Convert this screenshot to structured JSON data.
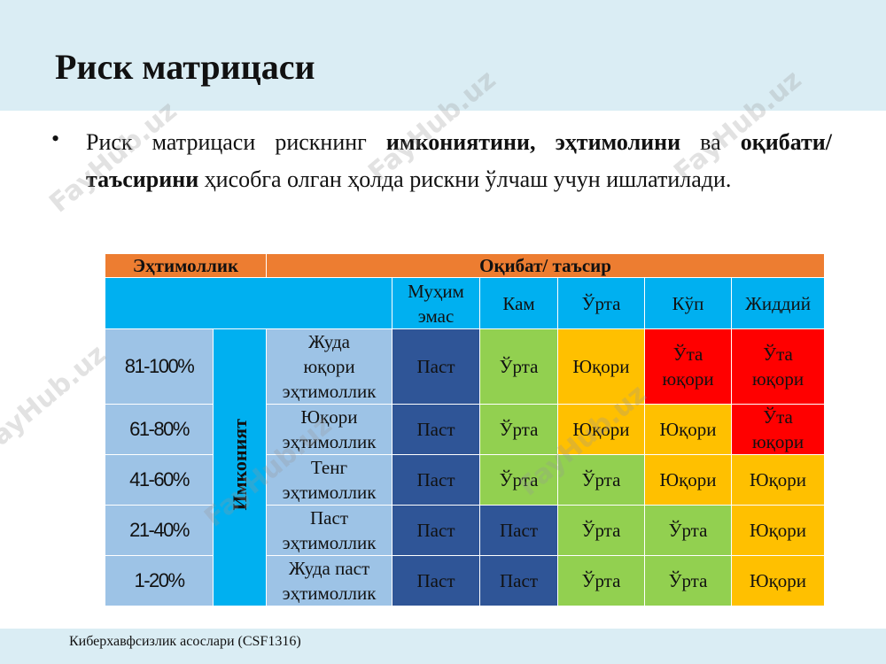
{
  "header": {
    "title": "Риск матрицаси"
  },
  "bullet": [
    {
      "text": "Риск матрицаси рискнинг ",
      "bold": false
    },
    {
      "text": "имкониятини, эҳтимолини",
      "bold": true
    },
    {
      "text": "  ва ",
      "bold": false
    },
    {
      "text": "оқибати/ таъсирини",
      "bold": true
    },
    {
      "text": " ҳисобга олган ҳолда рискни ўлчаш учун ишлатилади.",
      "bold": false
    }
  ],
  "table": {
    "header_left": "Эҳтимоллик",
    "header_right": "Оқибат/ таъсир",
    "row_label": "Имконият",
    "columns": [
      "Муҳим\nэмас",
      "Кам",
      "Ўрта",
      "Кўп",
      "Жиддий"
    ],
    "rows": [
      {
        "percent": "81-100%",
        "description": "Жуда\nюқори\nэҳтимоллик",
        "cells": [
          {
            "text": "Паст",
            "color": "#2f5597"
          },
          {
            "text": "Ўрта",
            "color": "#92d050"
          },
          {
            "text": "Юқори",
            "color": "#ffc000"
          },
          {
            "text": "Ўта\nюқори",
            "color": "#ff0000"
          },
          {
            "text": "Ўта\nюқори",
            "color": "#ff0000"
          }
        ]
      },
      {
        "percent": "61-80%",
        "description": "Юқори\nэҳтимоллик",
        "cells": [
          {
            "text": "Паст",
            "color": "#2f5597"
          },
          {
            "text": "Ўрта",
            "color": "#92d050"
          },
          {
            "text": "Юқори",
            "color": "#ffc000"
          },
          {
            "text": "Юқори",
            "color": "#ffc000"
          },
          {
            "text": "Ўта\nюқори",
            "color": "#ff0000"
          }
        ]
      },
      {
        "percent": "41-60%",
        "description": "Тенг\nэҳтимоллик",
        "cells": [
          {
            "text": "Паст",
            "color": "#2f5597"
          },
          {
            "text": "Ўрта",
            "color": "#92d050"
          },
          {
            "text": "Ўрта",
            "color": "#92d050"
          },
          {
            "text": "Юқори",
            "color": "#ffc000"
          },
          {
            "text": "Юқори",
            "color": "#ffc000"
          }
        ]
      },
      {
        "percent": "21-40%",
        "description": "Паст\nэҳтимоллик",
        "cells": [
          {
            "text": "Паст",
            "color": "#2f5597"
          },
          {
            "text": "Паст",
            "color": "#2f5597"
          },
          {
            "text": "Ўрта",
            "color": "#92d050"
          },
          {
            "text": "Ўрта",
            "color": "#92d050"
          },
          {
            "text": "Юқори",
            "color": "#ffc000"
          }
        ]
      },
      {
        "percent": "1-20%",
        "description": "Жуда паст\nэҳтимоллик",
        "cells": [
          {
            "text": "Паст",
            "color": "#2f5597"
          },
          {
            "text": "Паст",
            "color": "#2f5597"
          },
          {
            "text": "Ўрта",
            "color": "#92d050"
          },
          {
            "text": "Ўрта",
            "color": "#92d050"
          },
          {
            "text": "Юқори",
            "color": "#ffc000"
          }
        ]
      }
    ]
  },
  "footer": "Киберхавфсизлик асослари (CSF1316)",
  "watermark": "FayHub.uz"
}
